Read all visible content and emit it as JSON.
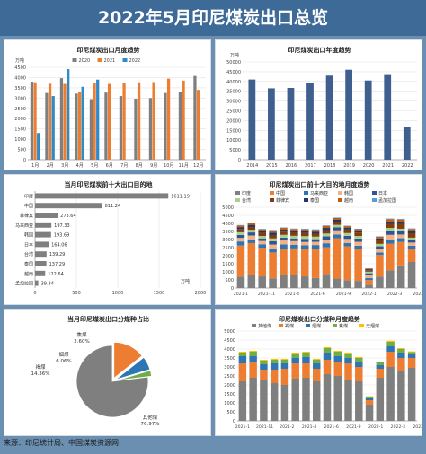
{
  "page": {
    "title": "2022年5月印尼煤炭出口总览",
    "source": "来源：印尼统计局、中国煤炭资源网"
  },
  "chart_data": [
    {
      "id": "monthly",
      "type": "bar",
      "title": "印尼煤炭出口月度趋势",
      "ylabel": "万吨",
      "ylim": [
        0,
        4500
      ],
      "yticks": [
        0,
        500,
        1000,
        1500,
        2000,
        2500,
        3000,
        3500,
        4000,
        4500
      ],
      "categories": [
        "1月",
        "2月",
        "3月",
        "4月",
        "5月",
        "6月",
        "7月",
        "8月",
        "9月",
        "10月",
        "11月",
        "12月"
      ],
      "colors": [
        "#7f7f7f",
        "#ed7d31",
        "#2e8bc9"
      ],
      "legend_position": "top",
      "series": [
        {
          "name": "2020",
          "values": [
            3800,
            3250,
            3970,
            3220,
            2950,
            3270,
            3100,
            2970,
            3000,
            3250,
            3300,
            4080
          ]
        },
        {
          "name": "2021",
          "values": [
            3770,
            3700,
            3690,
            3320,
            3720,
            3690,
            3720,
            3770,
            3780,
            3950,
            3850,
            3400
          ]
        },
        {
          "name": "2022",
          "values": [
            1300,
            3100,
            4410,
            3550,
            3900,
            null,
            null,
            null,
            null,
            null,
            null,
            null
          ]
        }
      ]
    },
    {
      "id": "annual",
      "type": "bar",
      "title": "印尼煤炭出口年度趋势",
      "ylabel": "万吨",
      "ylim": [
        0,
        50000
      ],
      "yticks": [
        0,
        5000,
        10000,
        15000,
        20000,
        25000,
        30000,
        35000,
        40000,
        45000,
        50000
      ],
      "categories": [
        "2014",
        "2015",
        "2016",
        "2017",
        "2018",
        "2019",
        "2020",
        "2021",
        "2022"
      ],
      "colors": [
        "#3f5f8f"
      ],
      "values": [
        41000,
        36500,
        36700,
        39000,
        43000,
        46000,
        40500,
        43300,
        16700
      ]
    },
    {
      "id": "destinations",
      "type": "bar",
      "orientation": "horizontal",
      "title": "当月印尼煤炭前十大出口目的地",
      "xlabel": "万吨",
      "xlim": [
        0,
        2000
      ],
      "xticks": [
        0,
        500,
        1000,
        1500,
        2000
      ],
      "categories": [
        "印度",
        "中国",
        "菲律宾",
        "马来西亚",
        "韩国",
        "日本",
        "台湾",
        "泰国",
        "越南",
        "孟加拉国"
      ],
      "colors": [
        "#7f7f7f"
      ],
      "values": [
        1611.19,
        811.24,
        273.64,
        197.33,
        193.69,
        164.06,
        139.29,
        137.29,
        122.64,
        39.34
      ],
      "data_labels": [
        "1611.19",
        "811.24",
        "273.64",
        "197.33",
        "193.69",
        "164.06",
        "139.29",
        "137.29",
        "122.64",
        "39.34"
      ]
    },
    {
      "id": "dest_trend",
      "type": "bar",
      "stacked": true,
      "title": "印尼煤炭出口前十大目的地月度趋势",
      "ylim": [
        0,
        5000
      ],
      "yticks": [
        0,
        500,
        1000,
        1500,
        2000,
        2500,
        3000,
        3500,
        4000,
        4500,
        5000
      ],
      "categories": [
        "2021-1",
        "2021-2",
        "2021-3",
        "2021-4",
        "2021-5",
        "2021-6",
        "2021-7",
        "2021-8",
        "2021-9",
        "2021-10",
        "2021-11",
        "2021-12",
        "2022-1",
        "2022-2",
        "2022-3",
        "2022-4",
        "2022-5"
      ],
      "tick_labels": [
        "2021-1",
        "2021-11",
        "2021-4",
        "2021-6",
        "2021-9",
        "2022-1",
        "2022-3",
        "2022-5"
      ],
      "tick_label_at": [
        0,
        2.4,
        4.8,
        7.2,
        9.6,
        12.0,
        14.4,
        16.8
      ],
      "colors": [
        "#7f7f7f",
        "#ed7d31",
        "#2e75b6",
        "#f4b183",
        "#2f5597",
        "#a9d18e",
        "#843c0c",
        "#1f3864",
        "#c55a11",
        "#5b9bd5"
      ],
      "legend_position": "top",
      "series": [
        {
          "name": "印度",
          "values": [
            700,
            800,
            720,
            600,
            820,
            780,
            720,
            620,
            870,
            580,
            480,
            440,
            190,
            700,
            1100,
            1400,
            1611
          ]
        },
        {
          "name": "中国",
          "values": [
            1930,
            1980,
            1780,
            1600,
            1620,
            1670,
            1700,
            1800,
            1650,
            2500,
            2100,
            2000,
            300,
            1350,
            1650,
            1450,
            811
          ]
        },
        {
          "name": "马来西亚",
          "values": [
            250,
            230,
            210,
            230,
            260,
            230,
            220,
            240,
            250,
            230,
            210,
            180,
            120,
            150,
            250,
            230,
            197
          ]
        },
        {
          "name": "韩国",
          "values": [
            220,
            240,
            200,
            260,
            240,
            220,
            210,
            200,
            230,
            260,
            250,
            240,
            170,
            220,
            290,
            230,
            194
          ]
        },
        {
          "name": "日本",
          "values": [
            180,
            190,
            160,
            200,
            180,
            170,
            190,
            160,
            200,
            180,
            190,
            200,
            130,
            160,
            230,
            200,
            164
          ]
        },
        {
          "name": "台湾",
          "values": [
            170,
            160,
            150,
            180,
            170,
            160,
            170,
            160,
            170,
            160,
            170,
            160,
            100,
            150,
            200,
            160,
            139
          ]
        },
        {
          "name": "菲律宾",
          "values": [
            200,
            180,
            190,
            210,
            200,
            190,
            200,
            180,
            210,
            200,
            220,
            210,
            90,
            220,
            250,
            300,
            274
          ]
        },
        {
          "name": "泰国",
          "values": [
            120,
            130,
            120,
            150,
            120,
            130,
            120,
            130,
            140,
            130,
            120,
            120,
            60,
            110,
            150,
            140,
            137
          ]
        },
        {
          "name": "越南",
          "values": [
            100,
            90,
            100,
            120,
            110,
            100,
            100,
            110,
            120,
            100,
            90,
            90,
            40,
            110,
            140,
            130,
            123
          ]
        },
        {
          "name": "孟加拉国",
          "values": [
            30,
            30,
            30,
            40,
            30,
            30,
            40,
            30,
            40,
            30,
            30,
            30,
            20,
            30,
            40,
            40,
            39
          ]
        }
      ]
    },
    {
      "id": "coaltype_share",
      "type": "pie",
      "title": "当月印尼煤炭出口分煤种占比",
      "categories": [
        "其他煤",
        "褐煤",
        "烟煤",
        "焦煤"
      ],
      "values": [
        76.97,
        14.36,
        6.06,
        2.6
      ],
      "data_labels": [
        "76.97%",
        "14.36%",
        "6.06%",
        "2.60%"
      ],
      "colors": [
        "#7f7f7f",
        "#ed7d31",
        "#2e75b6",
        "#70ad47"
      ]
    },
    {
      "id": "coaltype_trend",
      "type": "bar",
      "stacked": true,
      "title": "印尼煤炭出口分煤种月度趋势",
      "ylim": [
        0,
        5000
      ],
      "yticks": [
        0,
        500,
        1000,
        1500,
        2000,
        2500,
        3000,
        3500,
        4000,
        4500,
        5000
      ],
      "categories": [
        "2021-1",
        "2021-2",
        "2021-3",
        "2021-4",
        "2021-5",
        "2021-6",
        "2021-7",
        "2021-8",
        "2021-9",
        "2021-10",
        "2021-11",
        "2021-12",
        "2022-1",
        "2022-2",
        "2022-3",
        "2022-4",
        "2022-5"
      ],
      "tick_labels": [
        "2021-1",
        "2021-11",
        "2021-2",
        "2021-4",
        "2021-6",
        "2021-9",
        "2022-1",
        "2022-3",
        "2022-5"
      ],
      "tick_label_at": [
        0,
        2.1,
        4.2,
        6.3,
        8.4,
        10.5,
        12.6,
        14.7,
        16.8
      ],
      "colors": [
        "#7f7f7f",
        "#ed7d31",
        "#2e75b6",
        "#70ad47",
        "#ffc000"
      ],
      "legend_position": "top",
      "series": [
        {
          "name": "其他煤",
          "values": [
            2200,
            2400,
            2300,
            2100,
            2000,
            2350,
            2400,
            2200,
            2600,
            2500,
            2300,
            2200,
            900,
            2400,
            3000,
            2800,
            2950
          ]
        },
        {
          "name": "褐煤",
          "values": [
            1000,
            900,
            550,
            750,
            900,
            850,
            800,
            700,
            800,
            750,
            900,
            800,
            250,
            500,
            850,
            700,
            550
          ]
        },
        {
          "name": "烟煤",
          "values": [
            400,
            300,
            300,
            350,
            300,
            300,
            350,
            300,
            400,
            350,
            300,
            300,
            100,
            200,
            300,
            300,
            230
          ]
        },
        {
          "name": "焦煤",
          "values": [
            200,
            250,
            200,
            200,
            200,
            250,
            250,
            200,
            250,
            250,
            250,
            200,
            100,
            150,
            250,
            200,
            100
          ]
        },
        {
          "name": "无烟煤",
          "values": [
            50,
            50,
            50,
            50,
            50,
            50,
            50,
            50,
            50,
            50,
            50,
            50,
            20,
            40,
            60,
            50,
            40
          ]
        }
      ]
    }
  ]
}
